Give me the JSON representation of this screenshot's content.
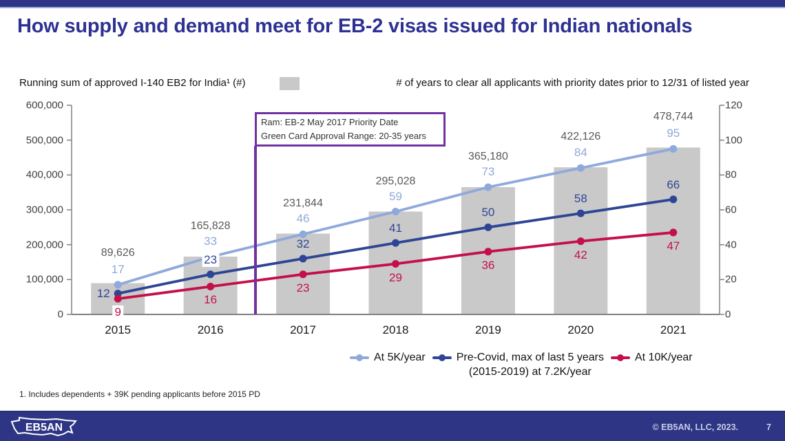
{
  "page": {
    "title": "How supply and demand meet for EB-2 visas issued for Indian nationals",
    "title_color": "#2E3192",
    "top_bar_color": "#2D3584",
    "accent_stripe_color": "#9AAEDC",
    "footnote": "1. Includes dependents + 39K pending applicants before 2015 PD",
    "footer": {
      "logo_text": "EB5AN",
      "copyright": "© EB5AN, LLC, 2023.",
      "page_number": "7",
      "bar_color": "#2D3584"
    }
  },
  "top_legend": {
    "bar_series_label": "Running sum of approved I-140 EB2 for India¹ (#)",
    "bar_swatch_color": "#C9C9C9",
    "line_series_label": "# of years to clear all applicants with priority dates prior to 12/31 of listed year"
  },
  "annotation": {
    "line1": "Ram: EB-2 May 2017 Priority Date",
    "line2": "Green Card Approval Range: 20-35 years",
    "border_color": "#7030A0"
  },
  "legend": {
    "items": [
      {
        "label": "At 5K/year",
        "color": "#8EA9DB"
      },
      {
        "label": "Pre-Covid, max of last 5 years",
        "label_line2": "(2015-2019) at 7.2K/year",
        "color": "#2E4595"
      },
      {
        "label": "At 10K/year",
        "color": "#C4104A"
      }
    ]
  },
  "chart_data": {
    "type": "bar+line combo",
    "categories": [
      "2015",
      "2016",
      "2017",
      "2018",
      "2019",
      "2020",
      "2021"
    ],
    "bar_series": {
      "name": "Running sum of approved I-140 EB2 for India (#)",
      "axis": "left",
      "values": [
        89626,
        165828,
        231844,
        295028,
        365180,
        422126,
        478744
      ],
      "value_labels": [
        "89,626",
        "165,828",
        "231,844",
        "295,028",
        "365,180",
        "422,126",
        "478,744"
      ],
      "color": "#C9C9C9",
      "label_color": "#595959"
    },
    "line_series": [
      {
        "name": "At 5K/year",
        "axis": "right",
        "values": [
          17,
          33,
          46,
          59,
          73,
          84,
          95
        ],
        "color": "#8EA9DB"
      },
      {
        "name": "Pre-Covid, max of last 5 years (2015-2019) at 7.2K/year",
        "axis": "right",
        "values": [
          12,
          23,
          32,
          41,
          50,
          58,
          66
        ],
        "color": "#2E4595"
      },
      {
        "name": "At 10K/year",
        "axis": "right",
        "values": [
          9,
          16,
          23,
          29,
          36,
          42,
          47
        ],
        "color": "#C4104A"
      }
    ],
    "left_axis": {
      "min": 0,
      "max": 600000,
      "tick_labels": [
        "600,000",
        "500,000",
        "400,000",
        "300,000",
        "200,000",
        "100,000",
        "0"
      ]
    },
    "right_axis": {
      "min": 0,
      "max": 120,
      "tick_labels": [
        "120",
        "100",
        "80",
        "60",
        "40",
        "20",
        "0"
      ]
    },
    "grid": false,
    "legend_position": "bottom-right",
    "annotation_x": "between 2016 and 2017",
    "axis_color": "#808080"
  }
}
